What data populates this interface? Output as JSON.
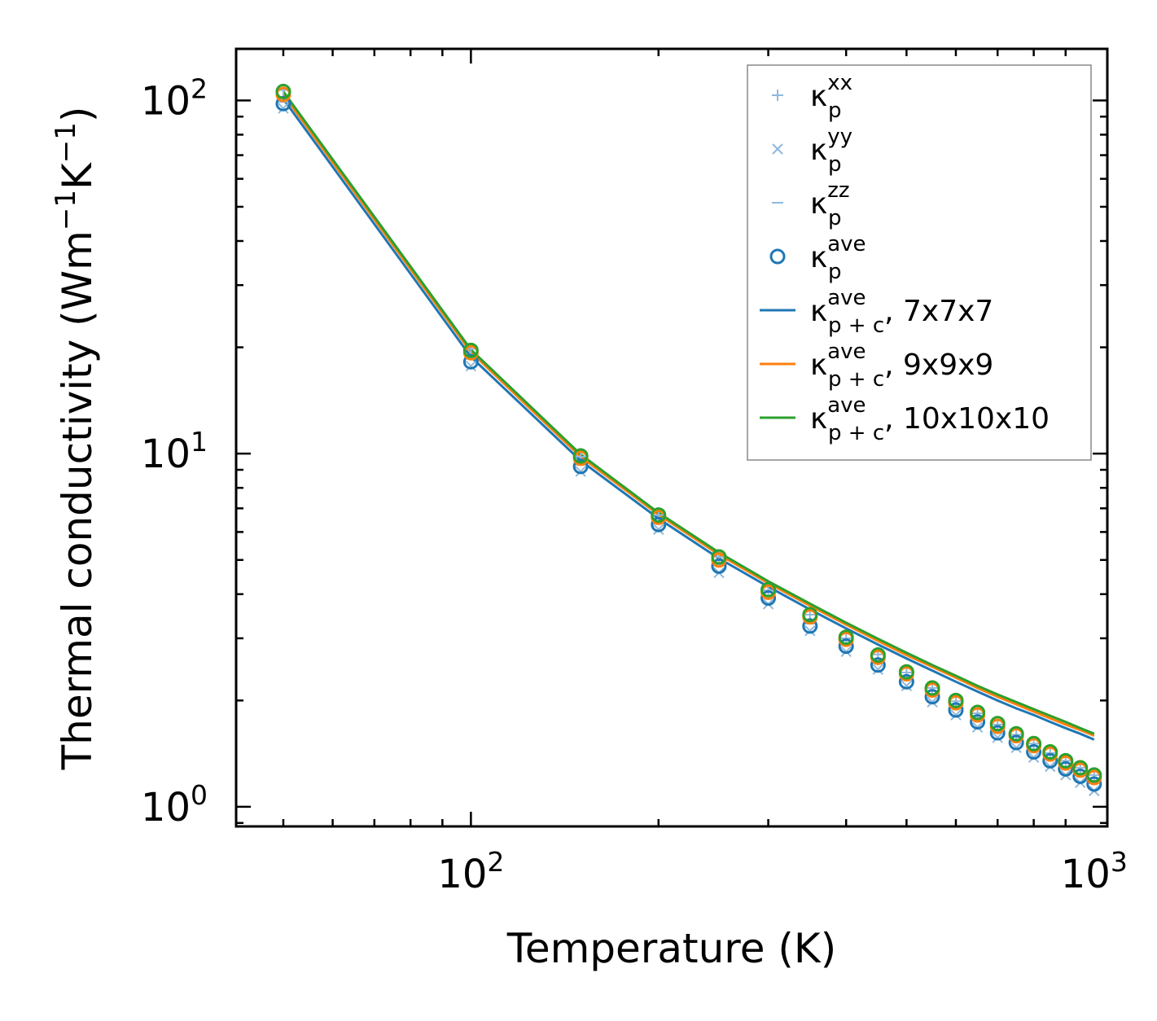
{
  "chart_data": {
    "type": "scatter",
    "xscale": "log",
    "yscale": "log",
    "xlim": [
      42,
      1050
    ],
    "ylim": [
      0.88,
      140
    ],
    "xlabel": "Temperature (K)",
    "ylabel": {
      "main": "Thermal conductivity (Wm",
      "sup1": "−1",
      "mid": "K",
      "sup2": "−1",
      "end": ")"
    },
    "xticks": [
      {
        "value": 100,
        "base": "10",
        "exp": "2"
      },
      {
        "value": 1000,
        "base": "10",
        "exp": "3"
      }
    ],
    "yticks": [
      {
        "value": 1,
        "base": "10",
        "exp": "0"
      },
      {
        "value": 10,
        "base": "10",
        "exp": "1"
      },
      {
        "value": 100,
        "base": "10",
        "exp": "2"
      }
    ],
    "temperatures": [
      50,
      100,
      150,
      200,
      250,
      300,
      350,
      400,
      450,
      500,
      550,
      600,
      650,
      700,
      750,
      800,
      850,
      900,
      950,
      1000
    ],
    "series": [
      {
        "id": "kxx",
        "kind": "plus",
        "color": "#8fb8dc",
        "legend": {
          "base": "κ",
          "sup": "xx",
          "sub": "p",
          "suffix": ""
        },
        "values": [
          107.0,
          19.8,
          9.8,
          6.7,
          5.1,
          4.1,
          3.5,
          3.0,
          2.7,
          2.4,
          2.17,
          1.99,
          1.84,
          1.71,
          1.6,
          1.51,
          1.42,
          1.35,
          1.29,
          1.23
        ]
      },
      {
        "id": "kyy",
        "kind": "x",
        "color": "#8fb8dc",
        "legend": {
          "base": "κ",
          "sup": "yy",
          "sub": "p",
          "suffix": ""
        },
        "values": [
          95.0,
          17.7,
          8.9,
          6.1,
          4.6,
          3.75,
          3.15,
          2.75,
          2.45,
          2.2,
          1.98,
          1.82,
          1.68,
          1.57,
          1.47,
          1.38,
          1.3,
          1.23,
          1.17,
          1.11
        ]
      },
      {
        "id": "kzz",
        "kind": "dash",
        "color": "#8fb8dc",
        "legend": {
          "base": "κ",
          "sup": "zz",
          "sub": "p",
          "suffix": ""
        },
        "values": [
          99.0,
          18.6,
          9.3,
          6.35,
          4.85,
          3.95,
          3.3,
          2.88,
          2.55,
          2.29,
          2.07,
          1.9,
          1.76,
          1.64,
          1.54,
          1.45,
          1.37,
          1.3,
          1.23,
          1.17
        ]
      },
      {
        "id": "kave_7",
        "kind": "circle",
        "color": "#1f77b4",
        "legend": {
          "base": "κ",
          "sup": "ave",
          "sub": "p",
          "suffix": ""
        },
        "values": [
          98.0,
          18.2,
          9.2,
          6.3,
          4.8,
          3.9,
          3.25,
          2.85,
          2.52,
          2.26,
          2.05,
          1.88,
          1.74,
          1.62,
          1.52,
          1.43,
          1.35,
          1.28,
          1.22,
          1.16
        ]
      },
      {
        "id": "kave_9",
        "kind": "circle",
        "color": "#ff7f0e",
        "legend": null,
        "values": [
          104.0,
          19.3,
          9.7,
          6.6,
          5.0,
          4.05,
          3.45,
          2.98,
          2.65,
          2.38,
          2.14,
          1.97,
          1.82,
          1.69,
          1.59,
          1.49,
          1.41,
          1.33,
          1.27,
          1.21
        ]
      },
      {
        "id": "kave_10",
        "kind": "circle",
        "color": "#2ca02c",
        "legend": null,
        "values": [
          106.0,
          19.6,
          9.85,
          6.7,
          5.1,
          4.12,
          3.5,
          3.02,
          2.69,
          2.41,
          2.17,
          2.0,
          1.85,
          1.72,
          1.61,
          1.51,
          1.43,
          1.35,
          1.29,
          1.23
        ]
      },
      {
        "id": "kpc_7",
        "kind": "line",
        "color": "#1f77b4",
        "legend": {
          "base": "κ",
          "sup": "ave",
          "sub": "p + c",
          "suffix": ", 7x7x7"
        },
        "values": [
          101.0,
          18.8,
          9.55,
          6.55,
          5.05,
          4.2,
          3.62,
          3.2,
          2.88,
          2.63,
          2.43,
          2.26,
          2.12,
          2.0,
          1.9,
          1.82,
          1.74,
          1.67,
          1.61,
          1.55
        ]
      },
      {
        "id": "kpc_9",
        "kind": "line",
        "color": "#ff7f0e",
        "legend": {
          "base": "κ",
          "sup": "ave",
          "sub": "p + c",
          "suffix": ", 9x9x9"
        },
        "values": [
          104.0,
          19.4,
          9.8,
          6.72,
          5.18,
          4.3,
          3.71,
          3.28,
          2.95,
          2.69,
          2.49,
          2.32,
          2.17,
          2.05,
          1.95,
          1.86,
          1.78,
          1.71,
          1.65,
          1.59
        ]
      },
      {
        "id": "kpc_10",
        "kind": "line",
        "color": "#2ca02c",
        "legend": {
          "base": "κ",
          "sup": "ave",
          "sub": "p + c",
          "suffix": ", 10x10x10"
        },
        "values": [
          106.0,
          19.7,
          9.95,
          6.8,
          5.25,
          4.35,
          3.76,
          3.32,
          2.99,
          2.73,
          2.52,
          2.35,
          2.2,
          2.08,
          1.98,
          1.89,
          1.81,
          1.74,
          1.67,
          1.61
        ]
      }
    ],
    "legend_position": "top-right",
    "grid": false
  }
}
